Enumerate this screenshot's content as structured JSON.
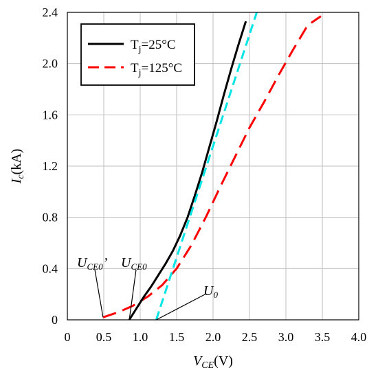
{
  "chart_data": {
    "type": "line",
    "xlabel": {
      "main": "V",
      "sub": "CE",
      "unit": "(V)"
    },
    "ylabel": {
      "main": "I",
      "sub": "c",
      "unit": "(kA)"
    },
    "xlim": [
      0,
      4.0
    ],
    "ylim": [
      0,
      2.4
    ],
    "x_ticks": [
      "0",
      "0.5",
      "1.0",
      "1.5",
      "2.0",
      "2.5",
      "3.0",
      "3.5",
      "4.0"
    ],
    "y_ticks": [
      "0",
      "0.4",
      "0.8",
      "1.2",
      "1.6",
      "2.0",
      "2.4"
    ],
    "grid": true,
    "legend_position": "top-left",
    "series": [
      {
        "name": "Tj=25°C",
        "legend": {
          "main": "T",
          "sub": "j",
          "rest": "=25°C"
        },
        "style": "solid",
        "color": "#000000",
        "x": [
          0.85,
          0.95,
          1.05,
          1.15,
          1.25,
          1.35,
          1.45,
          1.55,
          1.65,
          1.75,
          1.85,
          1.95,
          2.05,
          2.15,
          2.25,
          2.35,
          2.45
        ],
        "y": [
          0.0,
          0.09,
          0.18,
          0.26,
          0.35,
          0.44,
          0.54,
          0.66,
          0.8,
          0.97,
          1.15,
          1.35,
          1.55,
          1.76,
          1.96,
          2.15,
          2.33
        ]
      },
      {
        "name": "Tj=125°C",
        "legend": {
          "main": "T",
          "sub": "j",
          "rest": "=125°C"
        },
        "style": "dashed",
        "color": "#ff0000",
        "x": [
          0.49,
          0.7,
          0.9,
          1.1,
          1.3,
          1.5,
          1.7,
          1.9,
          2.1,
          2.3,
          2.5,
          2.7,
          2.9,
          3.1,
          3.3,
          3.48
        ],
        "y": [
          0.02,
          0.06,
          0.11,
          0.18,
          0.27,
          0.4,
          0.58,
          0.8,
          1.04,
          1.27,
          1.5,
          1.7,
          1.91,
          2.11,
          2.3,
          2.37
        ]
      },
      {
        "name": "",
        "style": "dashed",
        "color": "#00e5e5",
        "x": [
          1.22,
          2.6
        ],
        "y": [
          0.0,
          2.4
        ]
      }
    ],
    "annotations": [
      {
        "main": "U",
        "sub": "CE0",
        "rest": "’",
        "points_to": [
          0.49,
          0.02
        ]
      },
      {
        "main": "U",
        "sub": "CE0",
        "rest": "",
        "points_to": [
          0.85,
          0.0
        ]
      },
      {
        "main": "U",
        "sub": "0",
        "rest": "",
        "points_to": [
          1.22,
          0.0
        ]
      }
    ]
  }
}
